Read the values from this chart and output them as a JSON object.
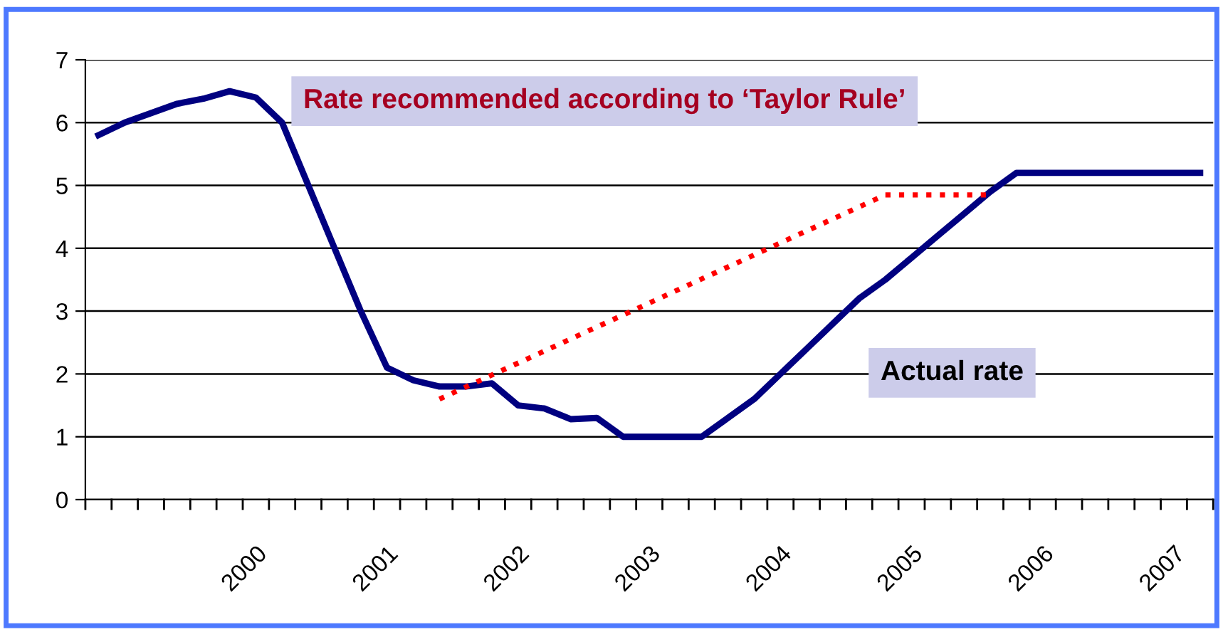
{
  "chart_data": {
    "type": "line",
    "categories": [
      null,
      null,
      null,
      null,
      null,
      null,
      "2000",
      null,
      null,
      null,
      null,
      "2001",
      null,
      null,
      null,
      null,
      "2002",
      null,
      null,
      null,
      null,
      "2003",
      null,
      null,
      null,
      null,
      "2004",
      null,
      null,
      null,
      null,
      "2005",
      null,
      null,
      null,
      null,
      "2006",
      null,
      null,
      null,
      null,
      "2007",
      null
    ],
    "series": [
      {
        "color": "#000080",
        "line_style": "solid",
        "values": [
          5.8,
          6.0,
          6.15,
          6.3,
          6.38,
          6.5,
          6.4,
          6.0,
          5.0,
          4.0,
          3.0,
          2.1,
          1.9,
          1.8,
          1.8,
          1.85,
          1.5,
          1.45,
          1.28,
          1.3,
          1.0,
          1.0,
          1.0,
          1.0,
          1.3,
          1.6,
          2.0,
          2.4,
          2.8,
          3.2,
          3.5,
          3.85,
          4.2,
          4.55,
          4.9,
          5.2,
          5.2,
          5.2,
          5.2,
          5.2,
          5.2,
          5.2,
          5.2
        ]
      },
      {
        "color": "#ff0000",
        "line_style": "dotted",
        "values": [
          null,
          null,
          null,
          null,
          null,
          null,
          null,
          null,
          null,
          null,
          null,
          null,
          null,
          1.6,
          null,
          null,
          null,
          null,
          null,
          null,
          null,
          null,
          null,
          null,
          null,
          null,
          null,
          null,
          null,
          null,
          4.85,
          null,
          null,
          null,
          4.85,
          null,
          null,
          null,
          null,
          null,
          null,
          null,
          null
        ]
      }
    ],
    "ylim": [
      0,
      7
    ],
    "yticks": [
      0,
      1,
      2,
      3,
      4,
      5,
      6,
      7
    ],
    "grid": "y",
    "annotations": [
      "Rate recommended according to ‘Taylor Rule’",
      "Actual rate"
    ]
  }
}
